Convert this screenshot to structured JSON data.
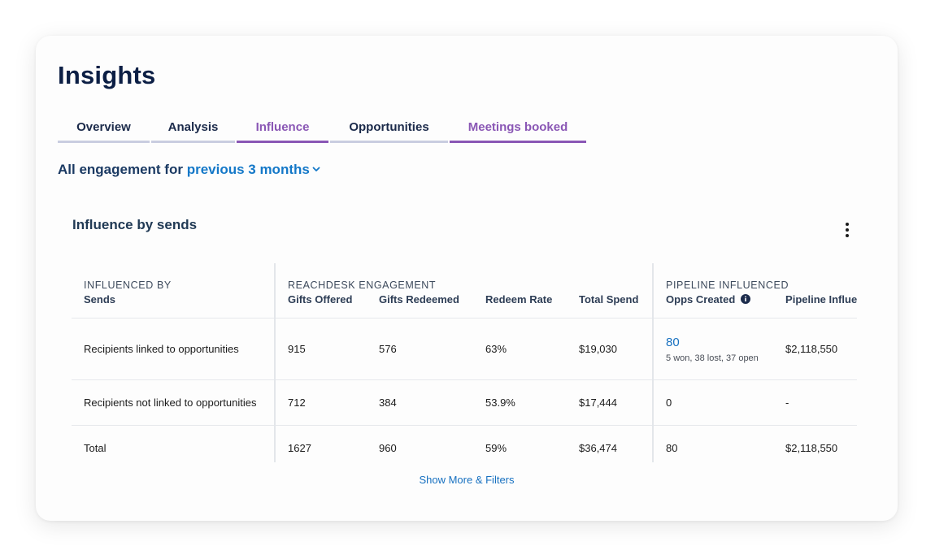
{
  "page": {
    "title": "Insights"
  },
  "tabs": [
    {
      "label": "Overview"
    },
    {
      "label": "Analysis"
    },
    {
      "label": "Influence"
    },
    {
      "label": "Opportunities"
    },
    {
      "label": "Meetings booked"
    }
  ],
  "filter": {
    "prefix": "All engagement for ",
    "period": "previous 3 months"
  },
  "section": {
    "title": "Influence by sends",
    "more_icon": "kebab-menu-icon"
  },
  "table": {
    "groups": {
      "influenced_by": "INFLUENCED BY",
      "engagement": "REACHDESK ENGAGEMENT",
      "pipeline": "PIPELINE INFLUENCED"
    },
    "columns": {
      "sends": "Sends",
      "gifts_offered": "Gifts Offered",
      "gifts_redeemed": "Gifts Redeemed",
      "redeem_rate": "Redeem Rate",
      "total_spend": "Total Spend",
      "opps_created": "Opps Created",
      "pipeline_influenced": "Pipeline Influenced"
    },
    "rows": [
      {
        "label": "Recipients linked to opportunities",
        "gifts_offered": "915",
        "gifts_redeemed": "576",
        "redeem_rate": "63%",
        "total_spend": "$19,030",
        "opps_created": "80",
        "opps_detail": "5 won, 38 lost, 37 open",
        "pipeline": "$2,118,550"
      },
      {
        "label": "Recipients not linked to opportunities",
        "gifts_offered": "712",
        "gifts_redeemed": "384",
        "redeem_rate": "53.9%",
        "total_spend": "$17,444",
        "opps_created": "0",
        "pipeline": "-"
      },
      {
        "label": "Total",
        "gifts_offered": "1627",
        "gifts_redeemed": "960",
        "redeem_rate": "59%",
        "total_spend": "$36,474",
        "opps_created": "80",
        "pipeline": "$2,118,550"
      }
    ]
  },
  "footer": {
    "show_more": "Show More & Filters"
  },
  "colors": {
    "navy": "#0c1f45",
    "purple_accent": "#8a57b5",
    "link_blue": "#1478c8"
  }
}
